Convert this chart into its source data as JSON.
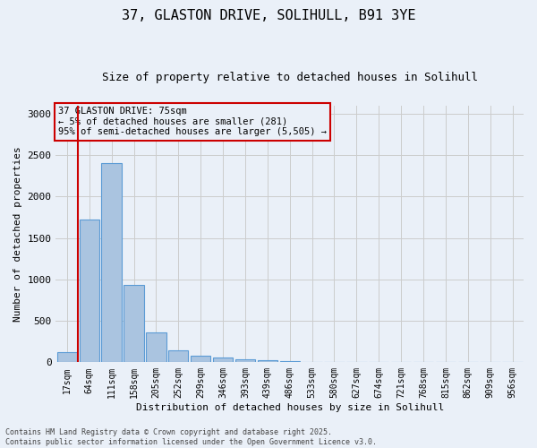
{
  "title_line1": "37, GLASTON DRIVE, SOLIHULL, B91 3YE",
  "title_line2": "Size of property relative to detached houses in Solihull",
  "xlabel": "Distribution of detached houses by size in Solihull",
  "ylabel": "Number of detached properties",
  "categories": [
    "17sqm",
    "64sqm",
    "111sqm",
    "158sqm",
    "205sqm",
    "252sqm",
    "299sqm",
    "346sqm",
    "393sqm",
    "439sqm",
    "486sqm",
    "533sqm",
    "580sqm",
    "627sqm",
    "674sqm",
    "721sqm",
    "768sqm",
    "815sqm",
    "862sqm",
    "909sqm",
    "956sqm"
  ],
  "values": [
    120,
    1720,
    2400,
    930,
    360,
    140,
    80,
    55,
    40,
    20,
    10,
    5,
    2,
    0,
    0,
    0,
    0,
    0,
    0,
    0,
    0
  ],
  "bar_color": "#aac4e0",
  "bar_edge_color": "#5b9bd5",
  "grid_color": "#cccccc",
  "bg_color": "#eaf0f8",
  "vline_x": 0.5,
  "vline_color": "#cc0000",
  "annotation_line1": "37 GLASTON DRIVE: 75sqm",
  "annotation_line2": "← 5% of detached houses are smaller (281)",
  "annotation_line3": "95% of semi-detached houses are larger (5,505) →",
  "annotation_box_color": "#cc0000",
  "footer_line1": "Contains HM Land Registry data © Crown copyright and database right 2025.",
  "footer_line2": "Contains public sector information licensed under the Open Government Licence v3.0.",
  "ylim": [
    0,
    3100
  ],
  "yticks": [
    0,
    500,
    1000,
    1500,
    2000,
    2500,
    3000
  ]
}
